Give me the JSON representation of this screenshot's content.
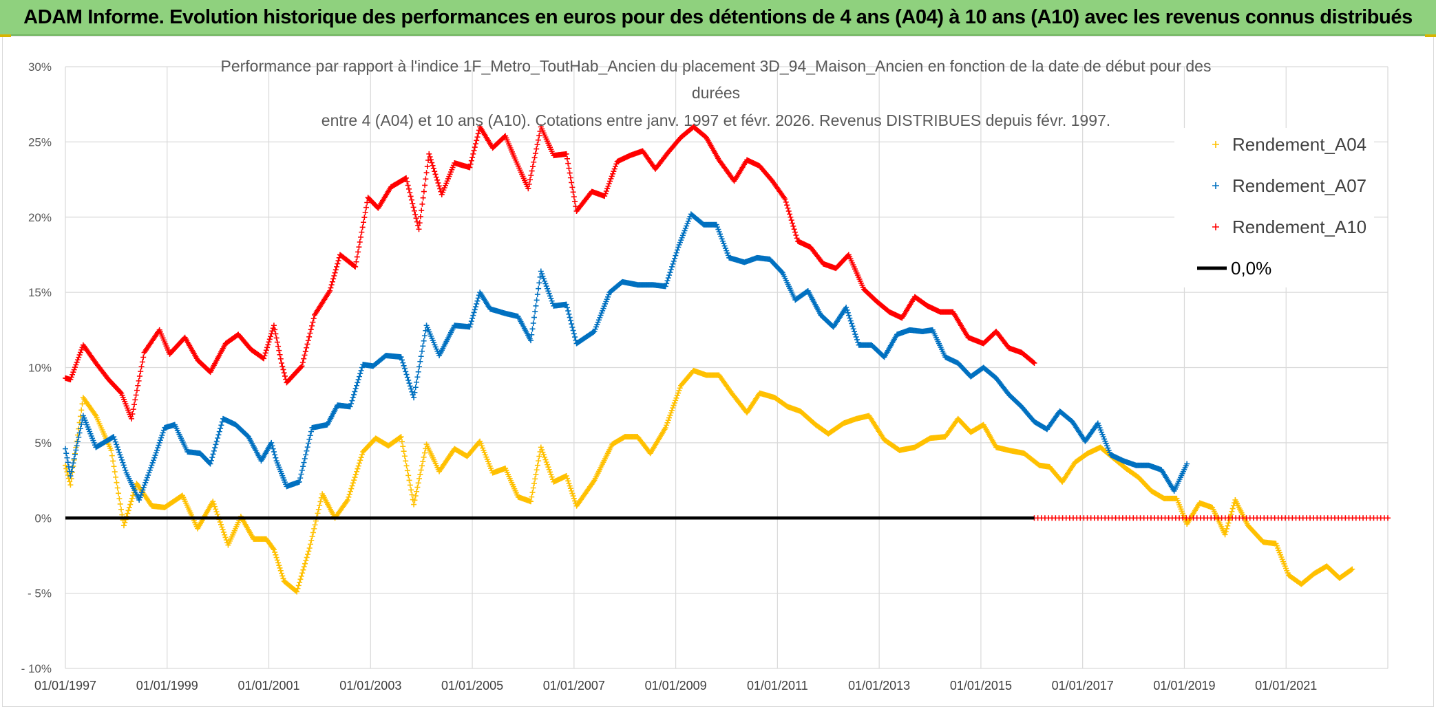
{
  "banner": {
    "title": "ADAM Informe. Evolution historique des performances en euros pour des détentions de 4 ans (A04) à 10 ans (A10) avec les revenus connus distribués"
  },
  "colors": {
    "a04": "#ffc000",
    "a07": "#0070c0",
    "a10": "#ff0000",
    "zero": "#000000",
    "banner": "#8fd17e"
  },
  "chart_data": {
    "type": "scatter",
    "title_lines": [
      "Performance par rapport à l'indice 1F_Metro_ToutHab_Ancien  du placement 3D_94_Maison_Ancien en fonction de la date de début pour des",
      "durées",
      "entre 4 (A04) et 10 ans (A10). Cotations entre janv. 1997 et févr. 2026. Revenus DISTRIBUES depuis févr. 1997."
    ],
    "xlim": [
      1997.0,
      2023.0
    ],
    "ylim": [
      -10,
      30
    ],
    "x_tick_values": [
      1997,
      1999,
      2001,
      2003,
      2005,
      2007,
      2009,
      2011,
      2013,
      2015,
      2017,
      2019,
      2021
    ],
    "x_tick_labels": [
      "01/01/1997",
      "01/01/1999",
      "01/01/2001",
      "01/01/2003",
      "01/01/2005",
      "01/01/2007",
      "01/01/2009",
      "01/01/2011",
      "01/01/2013",
      "01/01/2015",
      "01/01/2017",
      "01/01/2019",
      "01/01/2021"
    ],
    "y_tick_values": [
      30,
      25,
      20,
      15,
      10,
      5,
      0,
      -5,
      -10
    ],
    "y_tick_labels": [
      "30%",
      "25%",
      "20%",
      "15%",
      "10%",
      "5%",
      "0%",
      "- 5%",
      "- 10%"
    ],
    "legend": {
      "position": "top-right",
      "items": [
        {
          "label": "Rendement_A04",
          "key": "a04",
          "kind": "marker"
        },
        {
          "label": "Rendement_A07",
          "key": "a07",
          "kind": "marker"
        },
        {
          "label": "Rendement_A10",
          "key": "a10",
          "kind": "marker"
        },
        {
          "label": "0,0%",
          "key": "zero",
          "kind": "line"
        }
      ]
    },
    "series": [
      {
        "name": "Rendement_A04",
        "key": "a04",
        "marker": "+",
        "points": [
          [
            1997.0,
            3.5
          ],
          [
            1997.1,
            2.2
          ],
          [
            1997.35,
            8.0
          ],
          [
            1997.6,
            6.8
          ],
          [
            1997.9,
            4.5
          ],
          [
            1998.15,
            -0.5
          ],
          [
            1998.4,
            2.3
          ],
          [
            1998.7,
            0.8
          ],
          [
            1998.95,
            0.7
          ],
          [
            1999.3,
            1.5
          ],
          [
            1999.6,
            -0.7
          ],
          [
            1999.9,
            1.1
          ],
          [
            2000.2,
            -1.8
          ],
          [
            2000.45,
            0.1
          ],
          [
            2000.7,
            -1.4
          ],
          [
            2000.95,
            -1.4
          ],
          [
            2001.1,
            -2.1
          ],
          [
            2001.3,
            -4.2
          ],
          [
            2001.55,
            -4.9
          ],
          [
            2001.8,
            -2.0
          ],
          [
            2002.05,
            1.6
          ],
          [
            2002.3,
            0.0
          ],
          [
            2002.55,
            1.2
          ],
          [
            2002.85,
            4.4
          ],
          [
            2003.1,
            5.3
          ],
          [
            2003.35,
            4.8
          ],
          [
            2003.6,
            5.4
          ],
          [
            2003.85,
            0.9
          ],
          [
            2004.1,
            4.9
          ],
          [
            2004.35,
            3.1
          ],
          [
            2004.65,
            4.6
          ],
          [
            2004.9,
            4.1
          ],
          [
            2005.15,
            5.1
          ],
          [
            2005.4,
            3.0
          ],
          [
            2005.65,
            3.3
          ],
          [
            2005.9,
            1.4
          ],
          [
            2006.15,
            1.1
          ],
          [
            2006.35,
            4.7
          ],
          [
            2006.6,
            2.4
          ],
          [
            2006.85,
            2.8
          ],
          [
            2007.05,
            0.8
          ],
          [
            2007.4,
            2.5
          ],
          [
            2007.75,
            4.9
          ],
          [
            2008.0,
            5.4
          ],
          [
            2008.25,
            5.4
          ],
          [
            2008.5,
            4.3
          ],
          [
            2008.8,
            6.0
          ],
          [
            2009.1,
            8.8
          ],
          [
            2009.35,
            9.8
          ],
          [
            2009.6,
            9.5
          ],
          [
            2009.85,
            9.5
          ],
          [
            2010.1,
            8.3
          ],
          [
            2010.4,
            7.0
          ],
          [
            2010.65,
            8.3
          ],
          [
            2010.95,
            8.0
          ],
          [
            2011.2,
            7.4
          ],
          [
            2011.45,
            7.1
          ],
          [
            2011.75,
            6.2
          ],
          [
            2012.0,
            5.6
          ],
          [
            2012.3,
            6.3
          ],
          [
            2012.55,
            6.6
          ],
          [
            2012.8,
            6.8
          ],
          [
            2013.1,
            5.2
          ],
          [
            2013.4,
            4.5
          ],
          [
            2013.7,
            4.7
          ],
          [
            2014.0,
            5.3
          ],
          [
            2014.3,
            5.4
          ],
          [
            2014.55,
            6.6
          ],
          [
            2014.8,
            5.7
          ],
          [
            2015.05,
            6.2
          ],
          [
            2015.3,
            4.7
          ],
          [
            2015.55,
            4.5
          ],
          [
            2015.85,
            4.3
          ],
          [
            2016.15,
            3.5
          ],
          [
            2016.35,
            3.4
          ],
          [
            2016.6,
            2.4
          ],
          [
            2016.85,
            3.7
          ],
          [
            2017.1,
            4.3
          ],
          [
            2017.35,
            4.7
          ],
          [
            2017.6,
            4.0
          ],
          [
            2017.85,
            3.3
          ],
          [
            2018.1,
            2.7
          ],
          [
            2018.35,
            1.8
          ],
          [
            2018.6,
            1.3
          ],
          [
            2018.85,
            1.3
          ],
          [
            2019.05,
            -0.4
          ],
          [
            2019.3,
            1.0
          ],
          [
            2019.55,
            0.7
          ],
          [
            2019.8,
            -1.1
          ],
          [
            2020.0,
            1.2
          ],
          [
            2020.25,
            -0.5
          ],
          [
            2020.55,
            -1.6
          ],
          [
            2020.8,
            -1.7
          ],
          [
            2021.05,
            -3.8
          ],
          [
            2021.3,
            -4.4
          ],
          [
            2021.55,
            -3.7
          ],
          [
            2021.8,
            -3.2
          ],
          [
            2022.05,
            -4.0
          ],
          [
            2022.3,
            -3.4
          ]
        ]
      },
      {
        "name": "Rendement_A07",
        "key": "a07",
        "marker": "+",
        "points": [
          [
            1997.0,
            4.6
          ],
          [
            1997.1,
            2.8
          ],
          [
            1997.35,
            6.8
          ],
          [
            1997.6,
            4.7
          ],
          [
            1997.95,
            5.4
          ],
          [
            1998.2,
            3.0
          ],
          [
            1998.45,
            1.2
          ],
          [
            1998.75,
            4.0
          ],
          [
            1998.95,
            6.0
          ],
          [
            1999.15,
            6.2
          ],
          [
            1999.4,
            4.4
          ],
          [
            1999.65,
            4.3
          ],
          [
            1999.85,
            3.6
          ],
          [
            2000.1,
            6.6
          ],
          [
            2000.35,
            6.2
          ],
          [
            2000.6,
            5.4
          ],
          [
            2000.85,
            3.8
          ],
          [
            2001.05,
            5.0
          ],
          [
            2001.15,
            3.8
          ],
          [
            2001.35,
            2.1
          ],
          [
            2001.6,
            2.4
          ],
          [
            2001.85,
            6.0
          ],
          [
            2002.15,
            6.2
          ],
          [
            2002.35,
            7.5
          ],
          [
            2002.6,
            7.4
          ],
          [
            2002.85,
            10.2
          ],
          [
            2003.05,
            10.1
          ],
          [
            2003.3,
            10.8
          ],
          [
            2003.6,
            10.7
          ],
          [
            2003.85,
            8.0
          ],
          [
            2004.1,
            12.8
          ],
          [
            2004.35,
            10.8
          ],
          [
            2004.65,
            12.8
          ],
          [
            2004.95,
            12.7
          ],
          [
            2005.15,
            15.0
          ],
          [
            2005.35,
            13.9
          ],
          [
            2005.65,
            13.6
          ],
          [
            2005.9,
            13.4
          ],
          [
            2006.15,
            11.8
          ],
          [
            2006.35,
            16.4
          ],
          [
            2006.6,
            14.1
          ],
          [
            2006.85,
            14.2
          ],
          [
            2007.05,
            11.6
          ],
          [
            2007.4,
            12.4
          ],
          [
            2007.7,
            15.0
          ],
          [
            2007.95,
            15.7
          ],
          [
            2008.25,
            15.5
          ],
          [
            2008.55,
            15.5
          ],
          [
            2008.8,
            15.4
          ],
          [
            2009.05,
            18.0
          ],
          [
            2009.3,
            20.2
          ],
          [
            2009.55,
            19.5
          ],
          [
            2009.8,
            19.5
          ],
          [
            2010.05,
            17.3
          ],
          [
            2010.35,
            17.0
          ],
          [
            2010.6,
            17.3
          ],
          [
            2010.85,
            17.2
          ],
          [
            2011.1,
            16.3
          ],
          [
            2011.35,
            14.5
          ],
          [
            2011.6,
            15.1
          ],
          [
            2011.85,
            13.5
          ],
          [
            2012.1,
            12.7
          ],
          [
            2012.35,
            14.0
          ],
          [
            2012.6,
            11.5
          ],
          [
            2012.85,
            11.5
          ],
          [
            2013.1,
            10.7
          ],
          [
            2013.35,
            12.2
          ],
          [
            2013.6,
            12.5
          ],
          [
            2013.85,
            12.4
          ],
          [
            2014.05,
            12.5
          ],
          [
            2014.3,
            10.7
          ],
          [
            2014.55,
            10.3
          ],
          [
            2014.8,
            9.4
          ],
          [
            2015.05,
            10.0
          ],
          [
            2015.3,
            9.3
          ],
          [
            2015.55,
            8.2
          ],
          [
            2015.8,
            7.4
          ],
          [
            2016.05,
            6.4
          ],
          [
            2016.3,
            5.9
          ],
          [
            2016.55,
            7.1
          ],
          [
            2016.8,
            6.4
          ],
          [
            2017.05,
            5.1
          ],
          [
            2017.3,
            6.3
          ],
          [
            2017.55,
            4.2
          ],
          [
            2017.8,
            3.8
          ],
          [
            2018.05,
            3.5
          ],
          [
            2018.3,
            3.5
          ],
          [
            2018.55,
            3.2
          ],
          [
            2018.8,
            1.8
          ],
          [
            2019.05,
            3.6
          ]
        ]
      },
      {
        "name": "Rendement_A10",
        "key": "a10",
        "marker": "+",
        "points": [
          [
            1997.0,
            9.3
          ],
          [
            1997.1,
            9.2
          ],
          [
            1997.35,
            11.5
          ],
          [
            1997.6,
            10.3
          ],
          [
            1997.85,
            9.2
          ],
          [
            1998.1,
            8.3
          ],
          [
            1998.3,
            6.6
          ],
          [
            1998.55,
            11.0
          ],
          [
            1998.85,
            12.5
          ],
          [
            1999.05,
            10.9
          ],
          [
            1999.35,
            12.0
          ],
          [
            1999.6,
            10.5
          ],
          [
            1999.85,
            9.7
          ],
          [
            2000.15,
            11.6
          ],
          [
            2000.4,
            12.2
          ],
          [
            2000.65,
            11.2
          ],
          [
            2000.9,
            10.6
          ],
          [
            2001.1,
            12.8
          ],
          [
            2001.25,
            10.3
          ],
          [
            2001.35,
            9.0
          ],
          [
            2001.65,
            10.1
          ],
          [
            2001.9,
            13.5
          ],
          [
            2002.2,
            15.1
          ],
          [
            2002.4,
            17.5
          ],
          [
            2002.7,
            16.7
          ],
          [
            2002.95,
            21.3
          ],
          [
            2003.15,
            20.6
          ],
          [
            2003.4,
            22.0
          ],
          [
            2003.7,
            22.6
          ],
          [
            2003.95,
            19.2
          ],
          [
            2004.15,
            24.2
          ],
          [
            2004.4,
            21.5
          ],
          [
            2004.65,
            23.6
          ],
          [
            2004.95,
            23.3
          ],
          [
            2005.15,
            26.0
          ],
          [
            2005.4,
            24.6
          ],
          [
            2005.65,
            25.4
          ],
          [
            2005.85,
            23.8
          ],
          [
            2006.1,
            21.9
          ],
          [
            2006.35,
            26.0
          ],
          [
            2006.6,
            24.1
          ],
          [
            2006.85,
            24.2
          ],
          [
            2007.05,
            20.4
          ],
          [
            2007.35,
            21.7
          ],
          [
            2007.6,
            21.4
          ],
          [
            2007.85,
            23.7
          ],
          [
            2008.1,
            24.1
          ],
          [
            2008.35,
            24.4
          ],
          [
            2008.6,
            23.2
          ],
          [
            2008.85,
            24.3
          ],
          [
            2009.1,
            25.3
          ],
          [
            2009.35,
            26.0
          ],
          [
            2009.6,
            25.3
          ],
          [
            2009.85,
            23.8
          ],
          [
            2010.15,
            22.4
          ],
          [
            2010.4,
            23.8
          ],
          [
            2010.65,
            23.4
          ],
          [
            2010.9,
            22.4
          ],
          [
            2011.15,
            21.2
          ],
          [
            2011.4,
            18.4
          ],
          [
            2011.65,
            18.0
          ],
          [
            2011.9,
            16.9
          ],
          [
            2012.15,
            16.6
          ],
          [
            2012.4,
            17.5
          ],
          [
            2012.7,
            15.2
          ],
          [
            2012.95,
            14.4
          ],
          [
            2013.2,
            13.7
          ],
          [
            2013.45,
            13.3
          ],
          [
            2013.7,
            14.7
          ],
          [
            2013.95,
            14.1
          ],
          [
            2014.2,
            13.7
          ],
          [
            2014.45,
            13.7
          ],
          [
            2014.75,
            12.0
          ],
          [
            2015.05,
            11.6
          ],
          [
            2015.3,
            12.4
          ],
          [
            2015.55,
            11.3
          ],
          [
            2015.8,
            11.0
          ],
          [
            2016.05,
            10.3
          ]
        ]
      },
      {
        "name": "Rendement_A10 (zero)",
        "key": "a10",
        "marker": "+",
        "points": [
          [
            2016.05,
            0.0
          ],
          [
            2023.0,
            0.0
          ]
        ],
        "dense_step": 0.07
      },
      {
        "name": "0,0%",
        "key": "zero",
        "kind": "line",
        "points": [
          [
            1997.0,
            0.0
          ],
          [
            2016.05,
            0.0
          ]
        ]
      }
    ]
  }
}
